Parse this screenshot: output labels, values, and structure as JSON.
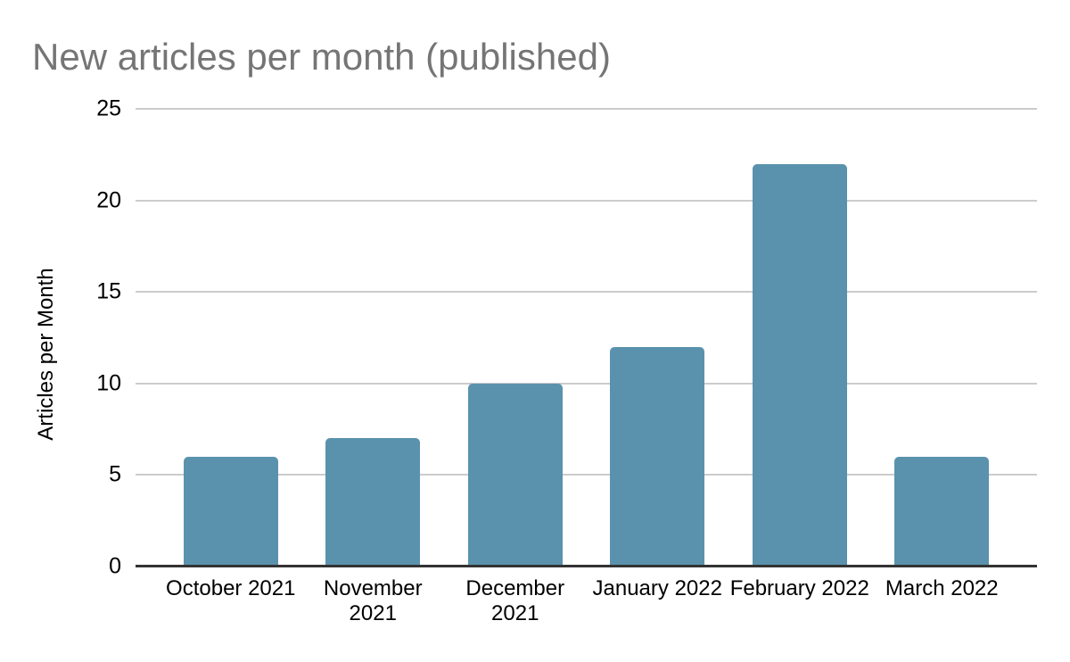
{
  "chart_data": {
    "type": "bar",
    "title": "New articles per month (published)",
    "categories": [
      "October 2021",
      "November 2021",
      "December 2021",
      "January 2022",
      "February 2022",
      "March 2022"
    ],
    "values": [
      6,
      7,
      10,
      12,
      22,
      6
    ],
    "xlabel": "",
    "ylabel": "Articles per Month",
    "ylim": [
      0,
      25
    ],
    "yticks": [
      0,
      5,
      10,
      15,
      20,
      25
    ],
    "grid": "horizontal-only",
    "legend": "none",
    "colors": {
      "bar": "#5a92ad",
      "title_text": "#757575",
      "gridline": "#cccccc",
      "axis_line": "#333333",
      "label_text": "#000000",
      "background": "#ffffff"
    }
  }
}
